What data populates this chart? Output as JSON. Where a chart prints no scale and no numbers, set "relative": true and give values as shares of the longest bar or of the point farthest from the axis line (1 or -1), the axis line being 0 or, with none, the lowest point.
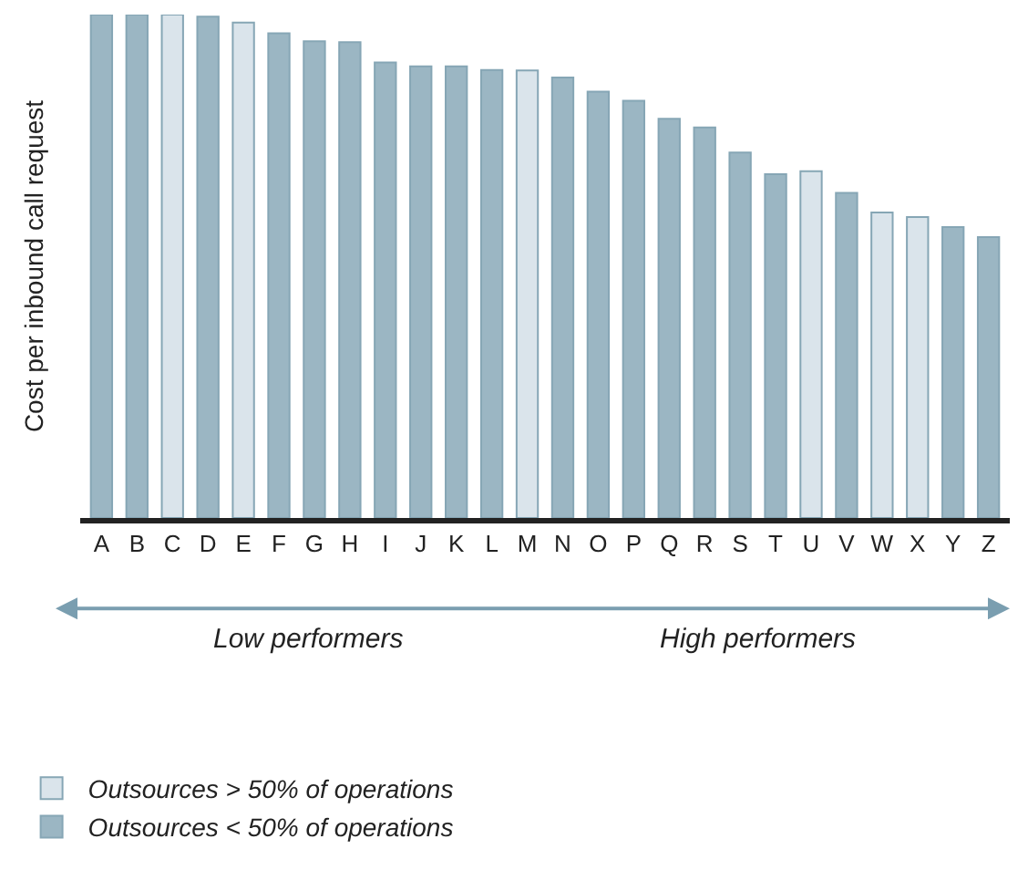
{
  "chart_data": {
    "type": "bar",
    "relative": true,
    "ylabel": "Cost per inbound call request",
    "categories": [
      "A",
      "B",
      "C",
      "D",
      "E",
      "F",
      "G",
      "H",
      "I",
      "J",
      "K",
      "L",
      "M",
      "N",
      "O",
      "P",
      "Q",
      "R",
      "S",
      "T",
      "U",
      "V",
      "W",
      "X",
      "Y",
      "Z"
    ],
    "series": [
      {
        "name": "Outsources > 50% of operations",
        "color": "#dae4eb",
        "values": [
          null,
          null,
          1,
          null,
          0.984,
          null,
          null,
          null,
          null,
          null,
          null,
          null,
          0.889,
          null,
          null,
          null,
          null,
          null,
          null,
          null,
          0.689,
          null,
          0.607,
          0.598,
          null,
          null
        ]
      },
      {
        "name": "Outsources < 50% of operations",
        "color": "#9bb6c3",
        "values": [
          1,
          1,
          null,
          0.996,
          null,
          0.963,
          0.947,
          0.945,
          0.905,
          0.897,
          0.897,
          0.89,
          null,
          0.875,
          0.847,
          0.829,
          0.793,
          0.776,
          0.726,
          0.683,
          null,
          0.646,
          null,
          null,
          0.578,
          0.558
        ]
      }
    ],
    "annotations": [
      "Low performers",
      "High performers"
    ],
    "legend": "bottom left"
  }
}
